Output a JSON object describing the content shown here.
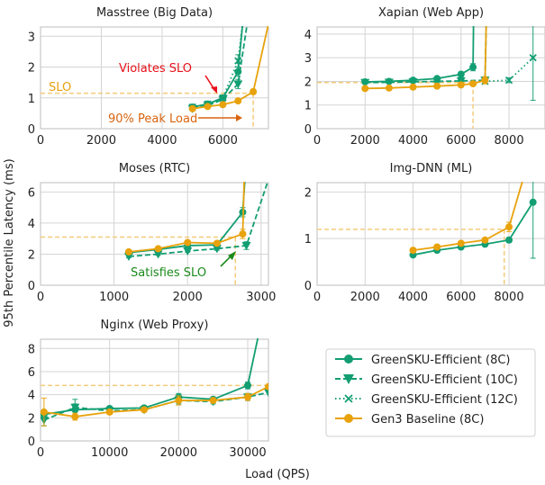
{
  "figure": {
    "ylabel": "95th Percentile Latency (ms)",
    "xlabel": "Load (QPS)"
  },
  "colors": {
    "green": "#129E72",
    "orange": "#E8A20C",
    "slo_line": "#F3CB7A",
    "red_annotation": "#E8101A",
    "orange_annotation": "#D96410",
    "green_annotation": "#1B8A1B",
    "grid": "#D4D4D4",
    "frame": "#C8C8C8"
  },
  "legend": {
    "entries": [
      {
        "label": "GreenSKU-Efficient (8C)",
        "color": "#129E72",
        "style": "solid",
        "marker": "circle"
      },
      {
        "label": "GreenSKU-Efficient (10C)",
        "color": "#129E72",
        "style": "dashed",
        "marker": "triangle-down"
      },
      {
        "label": "GreenSKU-Efficient (12C)",
        "color": "#129E72",
        "style": "dotted",
        "marker": "x"
      },
      {
        "label": "Gen3 Baseline (8C)",
        "color": "#E8A20C",
        "style": "solid",
        "marker": "circle"
      }
    ]
  },
  "chart_data": [
    {
      "type": "line",
      "title": "Masstree (Big Data)",
      "xlim": [
        0,
        7500
      ],
      "ylim": [
        0,
        3.3
      ],
      "xticks": [
        0,
        2000,
        4000,
        6000
      ],
      "yticks": [
        0,
        1,
        2,
        3
      ],
      "slo": {
        "y": 1.15,
        "x": 7000
      },
      "series": [
        {
          "name": "GreenSKU-Efficient (8C)",
          "x": [
            5000,
            5500,
            6000,
            6500,
            6650
          ],
          "y": [
            0.7,
            0.8,
            1.0,
            1.85,
            3.4
          ],
          "err": [
            0.05,
            0.05,
            0.08,
            0.15,
            0
          ]
        },
        {
          "name": "GreenSKU-Efficient (10C)",
          "x": [
            5000,
            5500,
            6000,
            6500,
            6800
          ],
          "y": [
            0.65,
            0.75,
            0.95,
            1.45,
            3.4
          ],
          "err": [
            0.05,
            0.05,
            0.08,
            0.15,
            0
          ]
        },
        {
          "name": "GreenSKU-Efficient (12C)",
          "x": [
            5000,
            5500,
            6000,
            6500,
            6650
          ],
          "y": [
            0.7,
            0.8,
            1.0,
            2.2,
            3.4
          ],
          "err": [
            0.05,
            0.05,
            0.08,
            0.2,
            0
          ]
        },
        {
          "name": "Gen3 Baseline (8C)",
          "x": [
            5000,
            5500,
            6000,
            6500,
            7000,
            7500
          ],
          "y": [
            0.65,
            0.72,
            0.78,
            0.9,
            1.2,
            3.4
          ],
          "err": [
            0.03,
            0.03,
            0.03,
            0.05,
            0.08,
            0
          ]
        }
      ],
      "annotations": [
        {
          "text": "SLO",
          "color": "#E8A20C"
        },
        {
          "text": "Violates SLO",
          "color": "#E8101A"
        },
        {
          "text": "90% Peak Load",
          "color": "#D96410"
        }
      ]
    },
    {
      "type": "line",
      "title": "Xapian (Web App)",
      "xlim": [
        0,
        9500
      ],
      "ylim": [
        0,
        4.3
      ],
      "xticks": [
        0,
        2000,
        4000,
        6000,
        8000
      ],
      "yticks": [
        0,
        1,
        2,
        3,
        4
      ],
      "slo": {
        "y": 1.95,
        "x": 6500
      },
      "series": [
        {
          "name": "GreenSKU-Efficient (8C)",
          "x": [
            2000,
            3000,
            4000,
            5000,
            6000,
            6500,
            6520
          ],
          "y": [
            1.98,
            2.0,
            2.05,
            2.12,
            2.3,
            2.6,
            4.4
          ],
          "err": [
            0.05,
            0.05,
            0.05,
            0.06,
            0.1,
            0.15,
            0
          ]
        },
        {
          "name": "GreenSKU-Efficient (10C)",
          "x": [
            2000,
            3000,
            4000,
            5000,
            6000,
            7000,
            7050
          ],
          "y": [
            1.95,
            1.96,
            1.98,
            2.0,
            2.02,
            2.05,
            4.4
          ],
          "err": [
            0.05,
            0.05,
            0.05,
            0.05,
            0.05,
            0.08,
            0
          ]
        },
        {
          "name": "GreenSKU-Efficient (12C)",
          "x": [
            7000,
            8000,
            9000
          ],
          "y": [
            2.0,
            2.05,
            3.0
          ],
          "err": [
            0.05,
            0.1,
            1.8
          ]
        },
        {
          "name": "Gen3 Baseline (8C)",
          "x": [
            2000,
            3000,
            4000,
            5000,
            6000,
            6500,
            7000,
            7050
          ],
          "y": [
            1.7,
            1.72,
            1.76,
            1.8,
            1.85,
            1.9,
            2.05,
            4.4
          ],
          "err": [
            0.04,
            0.04,
            0.04,
            0.04,
            0.05,
            0.05,
            0.15,
            0
          ]
        }
      ]
    },
    {
      "type": "line",
      "title": "Moses (RTC)",
      "xlim": [
        0,
        3100
      ],
      "ylim": [
        0,
        6.6
      ],
      "xticks": [
        0,
        1000,
        2000,
        3000
      ],
      "yticks": [
        0,
        2,
        4,
        6
      ],
      "slo": {
        "y": 3.1,
        "x": 2650
      },
      "series": [
        {
          "name": "GreenSKU-Efficient (8C)",
          "x": [
            1200,
            1600,
            2000,
            2400,
            2750,
            2780
          ],
          "y": [
            2.1,
            2.3,
            2.55,
            2.6,
            4.7,
            6.8
          ],
          "err": [
            0.08,
            0.08,
            0.1,
            0.1,
            0.3,
            0
          ]
        },
        {
          "name": "GreenSKU-Efficient (10C)",
          "x": [
            1200,
            1600,
            2000,
            2400,
            2800,
            3100
          ],
          "y": [
            1.85,
            2.0,
            2.2,
            2.35,
            2.55,
            6.8
          ],
          "err": [
            0.08,
            0.08,
            0.08,
            0.1,
            0.25,
            0
          ]
        },
        {
          "name": "Gen3 Baseline (8C)",
          "x": [
            1200,
            1600,
            2000,
            2400,
            2750,
            2770
          ],
          "y": [
            2.15,
            2.35,
            2.75,
            2.7,
            3.3,
            6.8
          ],
          "err": [
            0.08,
            0.08,
            0.1,
            0.1,
            0.3,
            0
          ]
        }
      ],
      "annotations": [
        {
          "text": "Satisfies SLO",
          "color": "#1B8A1B"
        }
      ]
    },
    {
      "type": "line",
      "title": "Img-DNN (ML)",
      "xlim": [
        0,
        9500
      ],
      "ylim": [
        0,
        2.2
      ],
      "xticks": [
        0,
        2000,
        4000,
        6000,
        8000
      ],
      "yticks": [
        0,
        1,
        2
      ],
      "slo": {
        "y": 1.2,
        "x": 7800
      },
      "series": [
        {
          "name": "GreenSKU-Efficient (8C)",
          "x": [
            4000,
            5000,
            6000,
            7000,
            8000,
            9000
          ],
          "y": [
            0.65,
            0.75,
            0.82,
            0.88,
            0.97,
            1.78
          ],
          "err": [
            0.03,
            0.03,
            0.03,
            0.03,
            0.05,
            1.2
          ]
        },
        {
          "name": "Gen3 Baseline (8C)",
          "x": [
            4000,
            5000,
            6000,
            7000,
            8000,
            8600
          ],
          "y": [
            0.75,
            0.82,
            0.9,
            0.97,
            1.25,
            2.3
          ],
          "err": [
            0.03,
            0.03,
            0.03,
            0.04,
            0.1,
            0
          ]
        }
      ]
    },
    {
      "type": "line",
      "title": "Nginx (Web Proxy)",
      "xlim": [
        0,
        33000
      ],
      "ylim": [
        0,
        8.8
      ],
      "xticks": [
        0,
        10000,
        20000,
        30000
      ],
      "yticks": [
        0,
        2,
        4,
        6,
        8
      ],
      "slo": {
        "y": 4.8
      },
      "series": [
        {
          "name": "GreenSKU-Efficient (8C)",
          "x": [
            500,
            5000,
            10000,
            15000,
            20000,
            25000,
            30000,
            31500
          ],
          "y": [
            2.3,
            2.7,
            2.8,
            2.85,
            3.8,
            3.6,
            4.8,
            9.0
          ],
          "err": [
            0.3,
            0.5,
            0.2,
            0.2,
            0.3,
            0.2,
            0.3,
            0
          ]
        },
        {
          "name": "GreenSKU-Efficient (10C)",
          "x": [
            500,
            5000,
            10000,
            15000,
            20000,
            25000,
            30000,
            33000
          ],
          "y": [
            1.8,
            2.9,
            2.6,
            2.7,
            3.5,
            3.4,
            3.8,
            4.2
          ],
          "err": [
            0.5,
            0.7,
            0.2,
            0.2,
            0.3,
            0.2,
            0.3,
            0
          ]
        },
        {
          "name": "Gen3 Baseline (8C)",
          "x": [
            500,
            5000,
            10000,
            15000,
            20000,
            25000,
            30000,
            33000
          ],
          "y": [
            2.5,
            2.1,
            2.5,
            2.7,
            3.5,
            3.5,
            3.8,
            4.7
          ],
          "err": [
            1.2,
            0.3,
            0.2,
            0.2,
            0.4,
            0.2,
            0.3,
            0
          ]
        }
      ]
    }
  ]
}
